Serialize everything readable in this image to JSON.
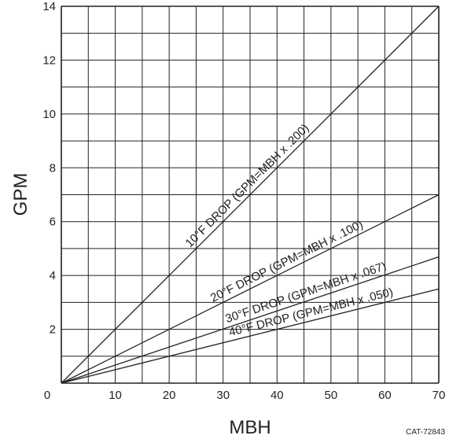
{
  "chart_data": {
    "type": "line",
    "xlabel": "MBH",
    "ylabel": "GPM",
    "xlim": [
      0,
      70
    ],
    "ylim": [
      0,
      14
    ],
    "x_ticks": [
      "0",
      "10",
      "20",
      "30",
      "40",
      "50",
      "60",
      "70"
    ],
    "y_ticks": [
      "2",
      "4",
      "6",
      "8",
      "10",
      "12",
      "14"
    ],
    "grid": true,
    "series": [
      {
        "name": "10°F DROP (GPM=MBH x .200)",
        "x": [
          0,
          70
        ],
        "y": [
          0,
          14.0
        ]
      },
      {
        "name": "20°F DROP (GPM=MBH x .100)",
        "x": [
          0,
          70
        ],
        "y": [
          0,
          7.0
        ]
      },
      {
        "name": "30°F DROP (GPM=MBH x .067)",
        "x": [
          0,
          70
        ],
        "y": [
          0,
          4.69
        ]
      },
      {
        "name": "40°F DROP (GPM=MBH x .050)",
        "x": [
          0,
          70
        ],
        "y": [
          0,
          3.5
        ]
      }
    ],
    "annotation": "CAT-72843"
  },
  "colors": {
    "line": "#222222",
    "grid": "#222222"
  }
}
